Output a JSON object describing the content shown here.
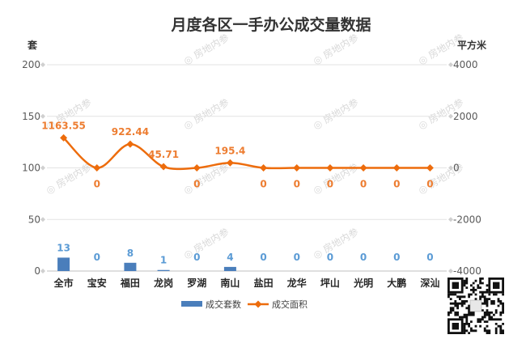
{
  "chart_data": {
    "type": "bar",
    "title": "月度各区一手办公成交量数据",
    "left_unit": "套",
    "right_unit": "平方米",
    "categories": [
      "全市",
      "宝安",
      "福田",
      "龙岗",
      "罗湖",
      "南山",
      "盐田",
      "龙华",
      "坪山",
      "光明",
      "大鹏",
      "深汕"
    ],
    "series": [
      {
        "name": "成交套数",
        "type": "bar",
        "axis": "left",
        "color": "#4a7ebb",
        "values": [
          13,
          0,
          8,
          1,
          0,
          4,
          0,
          0,
          0,
          0,
          0,
          0
        ],
        "labels": [
          "13",
          "0",
          "8",
          "1",
          "0",
          "4",
          "0",
          "0",
          "0",
          "0",
          "0",
          "0"
        ]
      },
      {
        "name": "成交面积",
        "type": "line",
        "axis": "right",
        "color": "#ed6c0c",
        "smooth": true,
        "marker": "diamond",
        "values": [
          1163.55,
          0,
          922.44,
          45.71,
          0,
          195.4,
          0,
          0,
          0,
          0,
          0,
          0
        ],
        "labels": [
          "1163.55",
          "0",
          "922.44",
          "45.71",
          "0",
          "195.4",
          "0",
          "0",
          "0",
          "0",
          "0",
          "0"
        ]
      }
    ],
    "y_left": {
      "min": 0,
      "max": 200,
      "ticks": [
        0,
        50,
        100,
        150,
        200
      ],
      "tick_labels": [
        "0",
        "50",
        "100",
        "150",
        "200"
      ]
    },
    "y_right": {
      "min": -4000,
      "max": 4000,
      "ticks": [
        -4000,
        -2000,
        0,
        2000,
        4000
      ],
      "tick_labels": [
        "-4000",
        "-2000",
        "0",
        "2000",
        "4000"
      ]
    },
    "grid": true,
    "legend_position": "bottom"
  },
  "watermark": "房地内参"
}
